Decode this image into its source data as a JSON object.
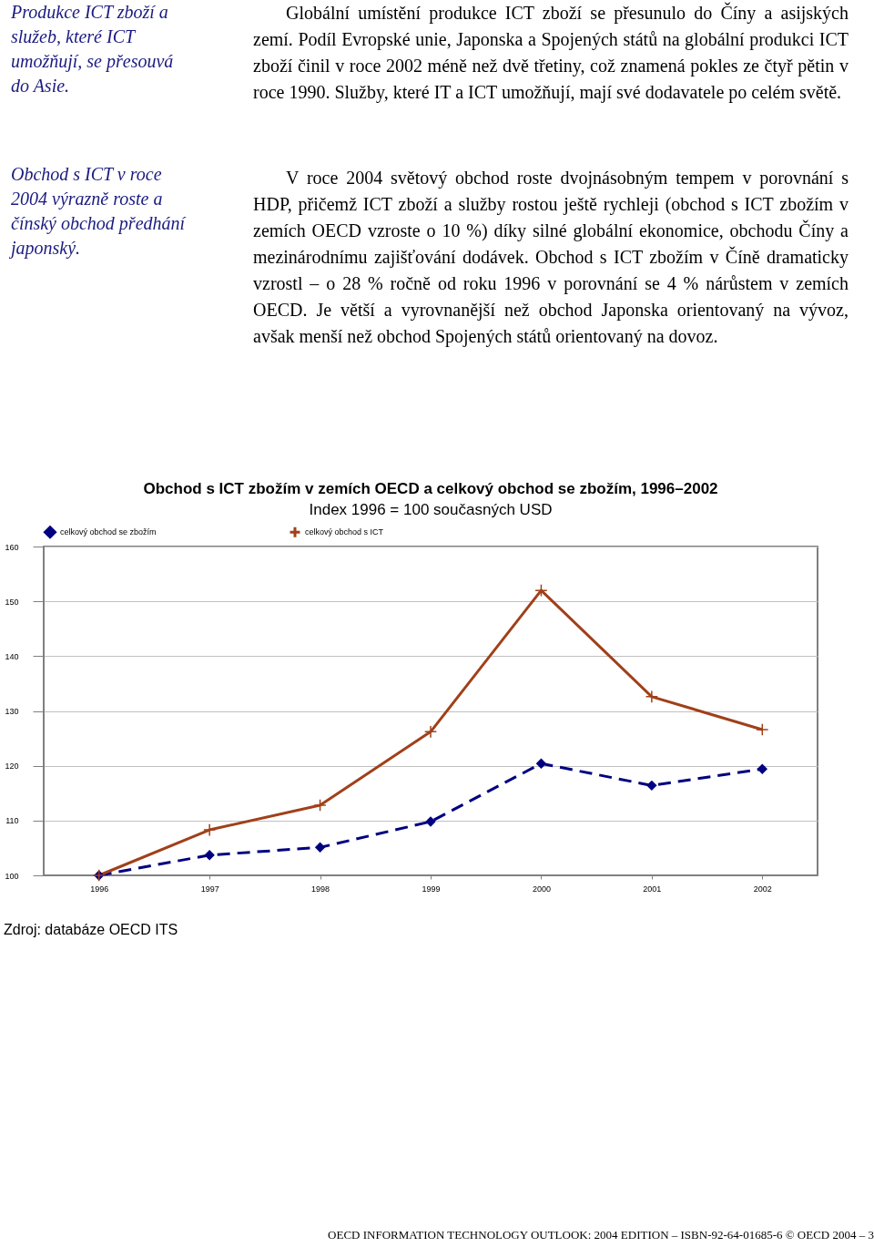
{
  "chart_data": {
    "type": "line",
    "title": "Obchod s ICT zbožím v zemích OECD a celkový obchod se zbožím, 1996–2002",
    "subtitle": "Index 1996 = 100 současných USD",
    "categories": [
      "1996",
      "1997",
      "1998",
      "1999",
      "2000",
      "2001",
      "2002"
    ],
    "series": [
      {
        "name": "celkový obchod se zbožím",
        "color": "#000080",
        "marker": "diamond",
        "line_style": "dashed",
        "values": [
          100,
          103.7,
          105.1,
          109.8,
          120.4,
          116.4,
          119.4
        ]
      },
      {
        "name": "celkový obchod s ICT",
        "color": "#a0401a",
        "marker": "cross",
        "line_style": "solid",
        "values": [
          100,
          108.3,
          112.8,
          126.2,
          152.0,
          132.6,
          126.6
        ]
      }
    ],
    "ylim": [
      100,
      160
    ],
    "yticks": [
      100,
      110,
      120,
      130,
      140,
      150,
      160
    ],
    "grid": "y",
    "legend": "top",
    "annotations": [
      "Produkce ICT zboží a služeb, které ICT umožňují, se přesouvá do Asie.",
      "Globální umístění produkce ICT zboží se přesunulo do Číny a asijských zemí. Podíl Evropské unie, Japonska a Spojených států na globální produkci ICT zboží činil v roce 2002 méně než dvě třetiny, což znamená pokles ze čtyř pětin v roce 1990. Služby, které IT a ICT umožňují, mají své dodavatele po celém světě.",
      "Obchod s ICT v roce 2004 výrazně roste a čínský obchod předhání japonský.",
      "V roce 2004 světový obchod roste dvojnásobným tempem v porovnání s HDP, přičemž ICT zboží a služby rostou ještě rychleji (obchod s ICT zbožím v zemích OECD vzroste o 10 %) díky silné globální ekonomice, obchodu Číny a mezinárodnímu zajišťování dodávek. Obchod s ICT zbožím v Číně dramaticky vzrostl – o 28 % ročně od roku 1996 v porovnání se 4 % nárůstem v zemích OECD. Je větší a vyrovnanější než obchod Japonska orientovaný na vývoz, avšak menší než obchod Spojených států orientovaný na dovoz.",
      "Zdroj: databáze OECD ITS",
      "OECD INFORMATION TECHNOLOGY OUTLOOK: 2004 EDITION – ISBN-92-64-01685-6 © OECD 2004 – 3"
    ]
  }
}
